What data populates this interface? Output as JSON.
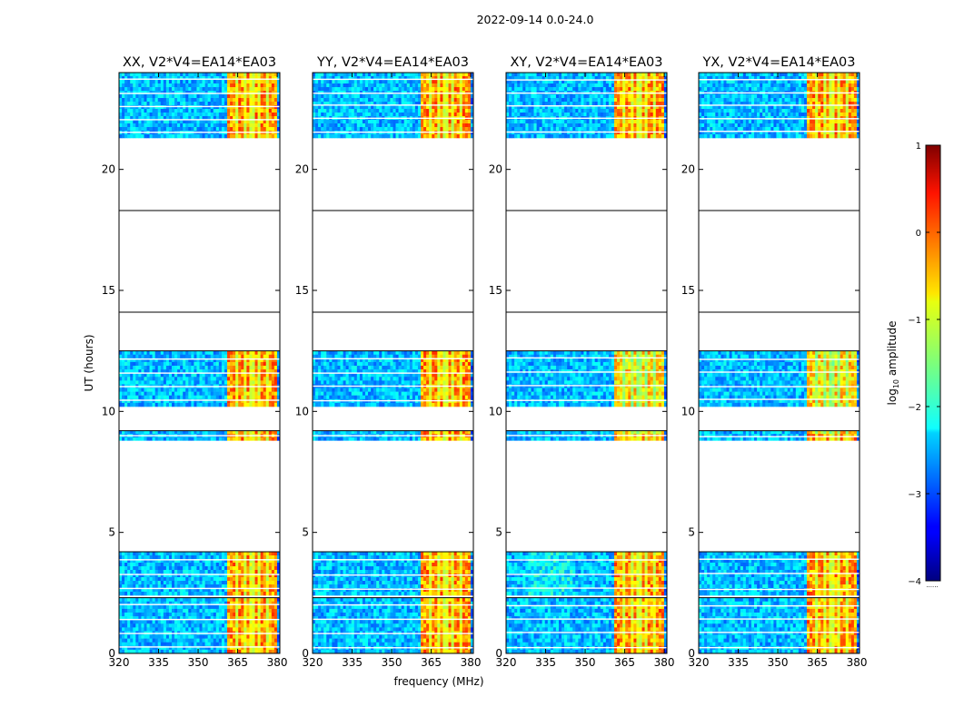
{
  "figure": {
    "suptitle": "2022-09-14 0.0-24.0",
    "xlabel": "frequency (MHz)",
    "ylabel": "UT (hours)"
  },
  "colorbar": {
    "label": "log",
    "label_sub": "10",
    "label_rest": " amplitude",
    "min": -4,
    "max": 1,
    "ticks": [
      -4,
      -3,
      -2,
      -1,
      0,
      1
    ],
    "tick_labels": [
      "−4",
      "−3",
      "−2",
      "−1",
      "0",
      "1"
    ],
    "dots": "......"
  },
  "chart_data": [
    {
      "type": "heatmap",
      "title": "XX, V2*V4=EA14*EA03",
      "xlim": [
        320,
        381
      ],
      "ylim": [
        0,
        24
      ],
      "xticks": [
        320,
        335,
        350,
        365,
        380
      ],
      "yticks": [
        0,
        5,
        10,
        15,
        20
      ],
      "band_start_mhz": 360.5,
      "band_end_mhz": 379.5,
      "strong_channels_mhz": [
        364.5,
        367.5,
        370.5,
        373.5,
        376.5
      ],
      "data_intervals_ut": [
        [
          0,
          2.3
        ],
        [
          2.4,
          4.2
        ],
        [
          8.8,
          9.2
        ],
        [
          10.2,
          12.5
        ],
        [
          21.3,
          24
        ]
      ],
      "gap_lines_ut": [
        14.1,
        18.3
      ]
    },
    {
      "type": "heatmap",
      "title": "YY, V2*V4=EA14*EA03",
      "xlim": [
        320,
        381
      ],
      "ylim": [
        0,
        24
      ],
      "xticks": [
        320,
        335,
        350,
        365,
        380
      ],
      "yticks": [
        0,
        5,
        10,
        15,
        20
      ],
      "band_start_mhz": 360.5,
      "band_end_mhz": 379.5,
      "strong_channels_mhz": [
        364.5,
        367.5,
        370.5,
        373.5,
        376.5
      ],
      "data_intervals_ut": [
        [
          0,
          2.3
        ],
        [
          2.4,
          4.2
        ],
        [
          8.8,
          9.2
        ],
        [
          10.2,
          12.5
        ],
        [
          21.3,
          24
        ]
      ],
      "gap_lines_ut": [
        14.1,
        18.3
      ]
    },
    {
      "type": "heatmap",
      "title": "XY, V2*V4=EA14*EA03",
      "xlim": [
        320,
        381
      ],
      "ylim": [
        0,
        24
      ],
      "xticks": [
        320,
        335,
        350,
        365,
        380
      ],
      "yticks": [
        0,
        5,
        10,
        15,
        20
      ],
      "band_start_mhz": 360.5,
      "band_end_mhz": 379.5,
      "strong_channels_mhz": [
        364.5,
        367.5,
        370.5,
        373.5,
        376.5
      ],
      "data_intervals_ut": [
        [
          0,
          2.3
        ],
        [
          2.4,
          4.2
        ],
        [
          8.8,
          9.2
        ],
        [
          10.2,
          12.5
        ],
        [
          21.3,
          24
        ]
      ],
      "gap_lines_ut": [
        14.1,
        18.3
      ]
    },
    {
      "type": "heatmap",
      "title": "YX, V2*V4=EA14*EA03",
      "xlim": [
        320,
        381
      ],
      "ylim": [
        0,
        24
      ],
      "xticks": [
        320,
        335,
        350,
        365,
        380
      ],
      "yticks": [
        0,
        5,
        10,
        15,
        20
      ],
      "band_start_mhz": 360.5,
      "band_end_mhz": 379.5,
      "strong_channels_mhz": [
        364.5,
        367.5,
        370.5,
        373.5,
        376.5
      ],
      "data_intervals_ut": [
        [
          0,
          2.3
        ],
        [
          2.4,
          4.2
        ],
        [
          8.8,
          9.2
        ],
        [
          10.2,
          12.5
        ],
        [
          21.3,
          24
        ]
      ],
      "gap_lines_ut": [
        14.1,
        18.3
      ]
    }
  ]
}
